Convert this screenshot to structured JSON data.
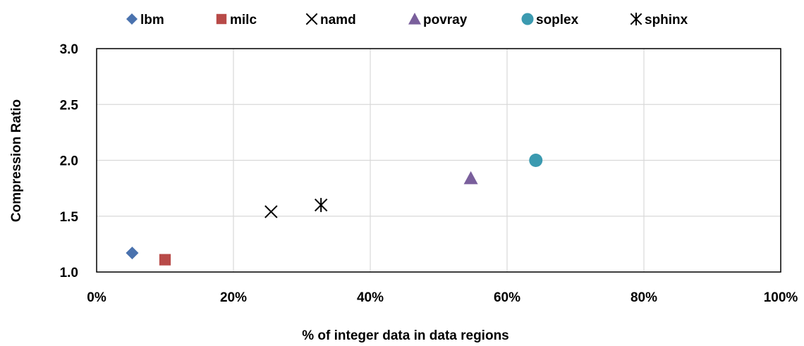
{
  "chart_data": {
    "type": "scatter",
    "xlabel": "% of integer data in data regions",
    "ylabel": "Compression Ratio",
    "xlim": [
      0,
      100
    ],
    "ylim": [
      1.0,
      3.0
    ],
    "x_ticks": [
      "0%",
      "20%",
      "40%",
      "60%",
      "80%",
      "100%"
    ],
    "y_ticks": [
      "1.0",
      "1.5",
      "2.0",
      "2.5",
      "3.0"
    ],
    "grid": true,
    "legend_position": "top",
    "series": [
      {
        "name": "lbm",
        "marker": "diamond",
        "color": "#4a72ae",
        "points": [
          {
            "x": 5.2,
            "y": 1.17
          }
        ]
      },
      {
        "name": "milc",
        "marker": "square",
        "color": "#b84a48",
        "points": [
          {
            "x": 10.0,
            "y": 1.11
          }
        ]
      },
      {
        "name": "namd",
        "marker": "x",
        "color": "#000000",
        "points": [
          {
            "x": 25.5,
            "y": 1.54
          }
        ]
      },
      {
        "name": "povray",
        "marker": "triangle",
        "color": "#7a5f9c",
        "points": [
          {
            "x": 54.7,
            "y": 1.84
          }
        ]
      },
      {
        "name": "soplex",
        "marker": "circle",
        "color": "#3b9ab0",
        "points": [
          {
            "x": 64.2,
            "y": 2.0
          }
        ]
      },
      {
        "name": "sphinx",
        "marker": "asterisk",
        "color": "#000000",
        "points": [
          {
            "x": 32.8,
            "y": 1.6
          }
        ]
      }
    ]
  }
}
